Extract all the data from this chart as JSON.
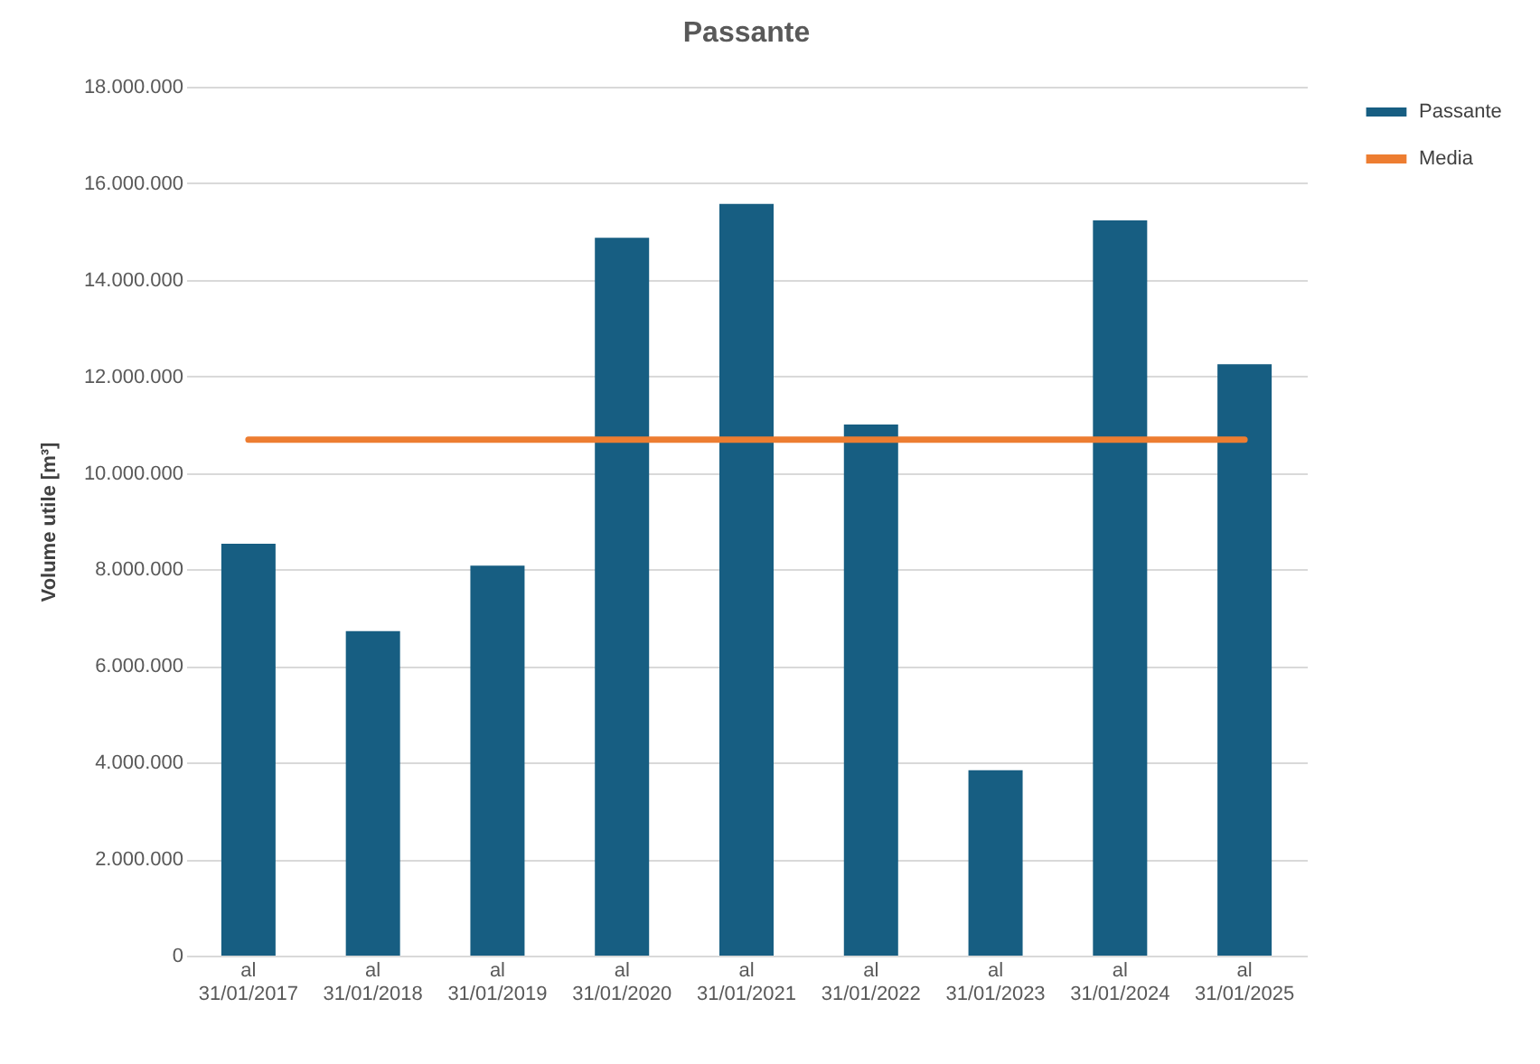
{
  "chart_data": {
    "type": "bar",
    "title": "Passante",
    "ylabel": "Volume utile [m³]",
    "categories": [
      "al 31/01/2017",
      "al 31/01/2018",
      "al 31/01/2019",
      "al 31/01/2020",
      "al 31/01/2021",
      "al 31/01/2022",
      "al 31/01/2023",
      "al 31/01/2024",
      "al 31/01/2025"
    ],
    "series": [
      {
        "name": "Passante",
        "color": "#175e82",
        "values": [
          8530000,
          6720000,
          8080000,
          14870000,
          15570000,
          11000000,
          3840000,
          15230000,
          12250000
        ]
      },
      {
        "name": "Media",
        "type": "line",
        "color": "#ed7d31",
        "values": [
          10690000,
          10690000,
          10690000,
          10690000,
          10690000,
          10690000,
          10690000,
          10690000,
          10690000
        ]
      }
    ],
    "ylim": [
      0,
      18000000
    ],
    "yticks": [
      {
        "value": 0,
        "label": "0"
      },
      {
        "value": 2000000,
        "label": "2.000.000"
      },
      {
        "value": 4000000,
        "label": "4.000.000"
      },
      {
        "value": 6000000,
        "label": "6.000.000"
      },
      {
        "value": 8000000,
        "label": "8.000.000"
      },
      {
        "value": 10000000,
        "label": "10.000.000"
      },
      {
        "value": 12000000,
        "label": "12.000.000"
      },
      {
        "value": 14000000,
        "label": "14.000.000"
      },
      {
        "value": 16000000,
        "label": "16.000.000"
      },
      {
        "value": 18000000,
        "label": "18.000.000"
      }
    ],
    "grid": "y",
    "legend": "right"
  }
}
